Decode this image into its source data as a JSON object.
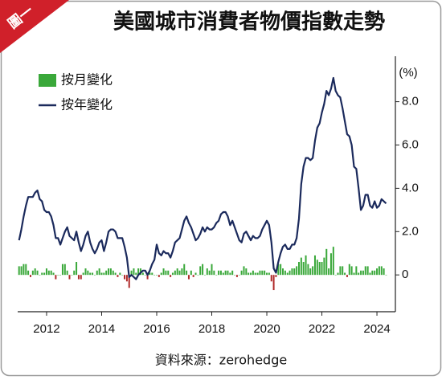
{
  "chart_data": {
    "type": "combo",
    "tag": "圖一",
    "title": "美國城市消費者物價指數走勢",
    "unit": "(%)",
    "source": "資料來源：zerohedge",
    "xlim": [
      2010.95,
      2024.67
    ],
    "ylim": [
      -1.7,
      10.1
    ],
    "xticks": [
      2012,
      2014,
      2016,
      2018,
      2020,
      2022,
      2024
    ],
    "yticks": [
      0,
      {
        "value": 2,
        "label": "2.0"
      },
      {
        "value": 4,
        "label": "4.0"
      },
      {
        "value": 6,
        "label": "6.0"
      },
      {
        "value": 8,
        "label": "8.0"
      }
    ],
    "x": [
      2011,
      2011.083,
      2011.167,
      2011.25,
      2011.333,
      2011.417,
      2011.5,
      2011.583,
      2011.667,
      2011.75,
      2011.833,
      2011.917,
      2012,
      2012.083,
      2012.167,
      2012.25,
      2012.333,
      2012.417,
      2012.5,
      2012.583,
      2012.667,
      2012.75,
      2012.833,
      2012.917,
      2013,
      2013.083,
      2013.167,
      2013.25,
      2013.333,
      2013.417,
      2013.5,
      2013.583,
      2013.667,
      2013.75,
      2013.833,
      2013.917,
      2014,
      2014.083,
      2014.167,
      2014.25,
      2014.333,
      2014.417,
      2014.5,
      2014.583,
      2014.667,
      2014.75,
      2014.833,
      2014.917,
      2015,
      2015.083,
      2015.167,
      2015.25,
      2015.333,
      2015.417,
      2015.5,
      2015.583,
      2015.667,
      2015.75,
      2015.833,
      2015.917,
      2016,
      2016.083,
      2016.167,
      2016.25,
      2016.333,
      2016.417,
      2016.5,
      2016.583,
      2016.667,
      2016.75,
      2016.833,
      2016.917,
      2017,
      2017.083,
      2017.167,
      2017.25,
      2017.333,
      2017.417,
      2017.5,
      2017.583,
      2017.667,
      2017.75,
      2017.833,
      2017.917,
      2018,
      2018.083,
      2018.167,
      2018.25,
      2018.333,
      2018.417,
      2018.5,
      2018.583,
      2018.667,
      2018.75,
      2018.833,
      2018.917,
      2019,
      2019.083,
      2019.167,
      2019.25,
      2019.333,
      2019.417,
      2019.5,
      2019.583,
      2019.667,
      2019.75,
      2019.833,
      2019.917,
      2020,
      2020.083,
      2020.167,
      2020.25,
      2020.333,
      2020.417,
      2020.5,
      2020.583,
      2020.667,
      2020.75,
      2020.833,
      2020.917,
      2021,
      2021.083,
      2021.167,
      2021.25,
      2021.333,
      2021.417,
      2021.5,
      2021.583,
      2021.667,
      2021.75,
      2021.833,
      2021.917,
      2022,
      2022.083,
      2022.167,
      2022.25,
      2022.333,
      2022.417,
      2022.5,
      2022.583,
      2022.667,
      2022.75,
      2022.833,
      2022.917,
      2023,
      2023.083,
      2023.167,
      2023.25,
      2023.333,
      2023.417,
      2023.5,
      2023.583,
      2023.667,
      2023.75,
      2023.833,
      2023.917,
      2024,
      2024.083,
      2024.167,
      2024.25,
      2024.333
    ],
    "series": [
      {
        "name": "按月變化",
        "type": "bar",
        "color": "#3aa83a",
        "negative_color": "#b02a2a",
        "values": [
          0.4,
          0.4,
          0.5,
          0.5,
          0.2,
          -0.1,
          0.2,
          0.3,
          0.2,
          0.0,
          0.1,
          0.1,
          0.3,
          0.2,
          0.2,
          0.1,
          -0.2,
          0.0,
          0.0,
          0.5,
          0.5,
          0.2,
          -0.2,
          0.0,
          0.2,
          0.6,
          -0.2,
          -0.2,
          0.1,
          0.3,
          0.2,
          0.1,
          0.1,
          0.0,
          0.2,
          0.3,
          0.1,
          0.1,
          0.2,
          0.3,
          0.3,
          0.2,
          0.1,
          -0.1,
          0.1,
          0.0,
          -0.2,
          -0.3,
          -0.6,
          0.2,
          0.3,
          0.1,
          0.3,
          0.3,
          0.1,
          0.0,
          -0.2,
          0.1,
          0.1,
          0.0,
          0.0,
          -0.1,
          0.1,
          0.3,
          0.2,
          0.2,
          -0.1,
          0.1,
          0.2,
          0.3,
          0.2,
          0.3,
          0.5,
          0.2,
          -0.2,
          0.2,
          -0.1,
          0.1,
          0.0,
          0.4,
          0.5,
          0.0,
          0.3,
          0.2,
          0.5,
          0.2,
          0.0,
          0.2,
          0.2,
          0.1,
          0.2,
          0.2,
          0.1,
          0.2,
          0.0,
          -0.1,
          0.0,
          0.2,
          0.4,
          0.3,
          0.1,
          0.1,
          0.2,
          0.1,
          0.1,
          0.2,
          0.2,
          0.2,
          0.1,
          0.1,
          -0.3,
          -0.7,
          -0.1,
          0.5,
          0.5,
          0.3,
          0.2,
          0.1,
          0.2,
          0.3,
          0.3,
          0.4,
          0.6,
          0.8,
          0.6,
          0.9,
          0.5,
          0.3,
          0.4,
          0.9,
          0.7,
          0.6,
          0.6,
          0.8,
          1.2,
          0.3,
          1.0,
          1.3,
          0.0,
          0.1,
          0.4,
          0.4,
          0.1,
          -0.1,
          0.5,
          0.4,
          0.1,
          0.4,
          0.1,
          0.2,
          0.2,
          0.4,
          0.4,
          0.1,
          0.2,
          0.2,
          0.3,
          0.4,
          0.4,
          0.3,
          0.0
        ]
      },
      {
        "name": "按年變化",
        "type": "line",
        "color": "#1b2a5c",
        "values": [
          1.6,
          2.1,
          2.7,
          3.2,
          3.6,
          3.6,
          3.6,
          3.8,
          3.9,
          3.5,
          3.4,
          3.0,
          2.9,
          2.9,
          2.7,
          2.3,
          1.7,
          1.7,
          1.4,
          1.7,
          2.0,
          2.2,
          1.8,
          1.7,
          1.6,
          2.0,
          1.5,
          1.1,
          1.4,
          1.8,
          2.0,
          1.5,
          1.2,
          1.0,
          1.2,
          1.5,
          1.6,
          1.1,
          1.5,
          2.0,
          2.1,
          2.1,
          2.0,
          1.7,
          1.7,
          1.7,
          1.3,
          0.8,
          -0.1,
          0.0,
          -0.1,
          -0.2,
          0.0,
          0.1,
          0.2,
          0.2,
          0.0,
          0.2,
          0.5,
          0.7,
          1.4,
          1.0,
          0.9,
          1.1,
          1.0,
          1.0,
          0.8,
          1.1,
          1.5,
          1.6,
          1.7,
          2.1,
          2.5,
          2.7,
          2.4,
          2.2,
          1.9,
          1.6,
          1.7,
          1.9,
          2.2,
          2.0,
          2.2,
          2.1,
          2.1,
          2.2,
          2.4,
          2.5,
          2.8,
          2.9,
          2.9,
          2.7,
          2.3,
          2.5,
          2.2,
          1.9,
          1.6,
          1.5,
          1.9,
          2.0,
          1.8,
          1.6,
          1.8,
          1.7,
          1.7,
          1.8,
          2.1,
          2.3,
          2.5,
          2.3,
          1.5,
          0.3,
          0.1,
          0.6,
          1.0,
          1.3,
          1.4,
          1.2,
          1.2,
          1.4,
          1.4,
          1.7,
          2.6,
          4.2,
          5.0,
          5.4,
          5.4,
          5.3,
          5.4,
          6.2,
          6.8,
          7.0,
          7.5,
          7.9,
          8.5,
          8.3,
          8.6,
          9.1,
          8.5,
          8.3,
          8.2,
          7.7,
          7.1,
          6.5,
          6.4,
          6.0,
          5.0,
          4.9,
          4.0,
          3.0,
          3.2,
          3.7,
          3.7,
          3.2,
          3.1,
          3.4,
          3.1,
          3.2,
          3.5,
          3.4,
          3.3
        ]
      }
    ]
  }
}
